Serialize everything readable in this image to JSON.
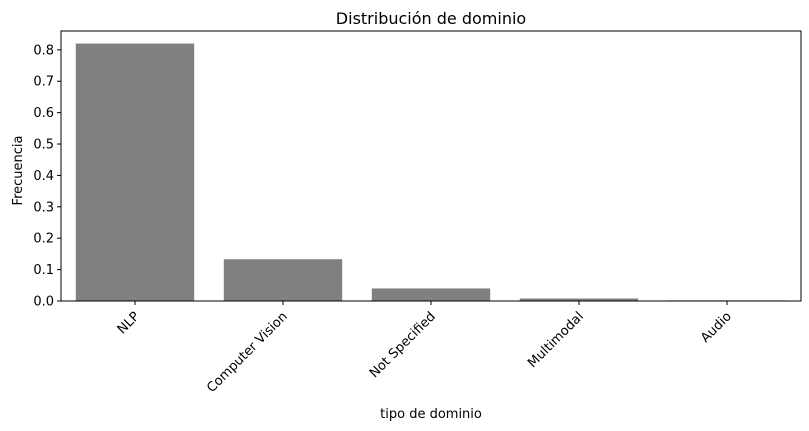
{
  "chart_data": {
    "type": "bar",
    "title": "Distribución de dominio",
    "xlabel": "tipo de dominio",
    "ylabel": "Frecuencia",
    "categories": [
      "NLP",
      "Computer Vision",
      "Not Specified",
      "Multimodal",
      "Audio"
    ],
    "values": [
      0.82,
      0.133,
      0.04,
      0.008,
      0.002
    ],
    "ylim": [
      0,
      0.86
    ],
    "yticks": [
      0.0,
      0.1,
      0.2,
      0.3,
      0.4,
      0.5,
      0.6,
      0.7,
      0.8
    ],
    "ytick_labels": [
      "0.0",
      "0.1",
      "0.2",
      "0.3",
      "0.4",
      "0.5",
      "0.6",
      "0.7",
      "0.8"
    ],
    "bar_color": "#808080",
    "grid": false,
    "legend": "none"
  }
}
